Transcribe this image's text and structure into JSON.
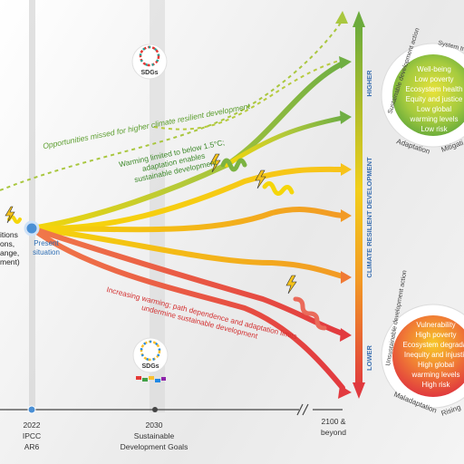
{
  "left_fragment": {
    "lines": [
      "itions",
      "ons,",
      "ange,",
      "ment)"
    ]
  },
  "present": {
    "label_line1": "Present",
    "label_line2": "situation"
  },
  "annotations": {
    "opportunities_missed": "Opportunities missed for higher climate resilient development",
    "warming_limited_line1": "Warming limited to below 1.5°C;",
    "warming_limited_line2": "adaptation enables",
    "warming_limited_line3": "sustainable development",
    "increasing_line1": "Increasing warming; path dependence and adaptation limits",
    "increasing_line2": "undermine sustainable development"
  },
  "sdg_badge": {
    "label": "SDGs"
  },
  "vertical_axis": {
    "title": "CLIMATE RESILIENT DEVELOPMENT",
    "higher": "HIGHER",
    "lower": "LOWER"
  },
  "timeline": {
    "t2022_line1": "2022",
    "t2022_line2": "IPCC",
    "t2022_line3": "AR6",
    "t2030_line1": "2030",
    "t2030_line2": "Sustainable",
    "t2030_line3": "Development Goals",
    "t2100_line1": "2100 &",
    "t2100_line2": "beyond"
  },
  "upper_circle": {
    "ring_top_left": "Sustainable development action",
    "ring_top_right": "System tr",
    "ring_bottom_left": "Adaptation",
    "ring_bottom_right": "Mitigati",
    "items": [
      "Well-being",
      "Low poverty",
      "Ecosystem health",
      "Equity and justice",
      "Low global",
      "warming levels",
      "Low risk"
    ]
  },
  "lower_circle": {
    "ring_top_left": "Unsustainable development action",
    "ring_bottom_left": "Maladaptation",
    "ring_bottom_right": "Rising",
    "items": [
      "Vulnerability",
      "High poverty",
      "Ecosystem degradat",
      "Inequity and injustic",
      "High global",
      "warming levels",
      "High risk"
    ]
  },
  "colors": {
    "green": "#7cb342",
    "yellow": "#f5d60a",
    "orange": "#f5a623",
    "red": "#e53935",
    "present_dot": "#4a8fd4"
  }
}
